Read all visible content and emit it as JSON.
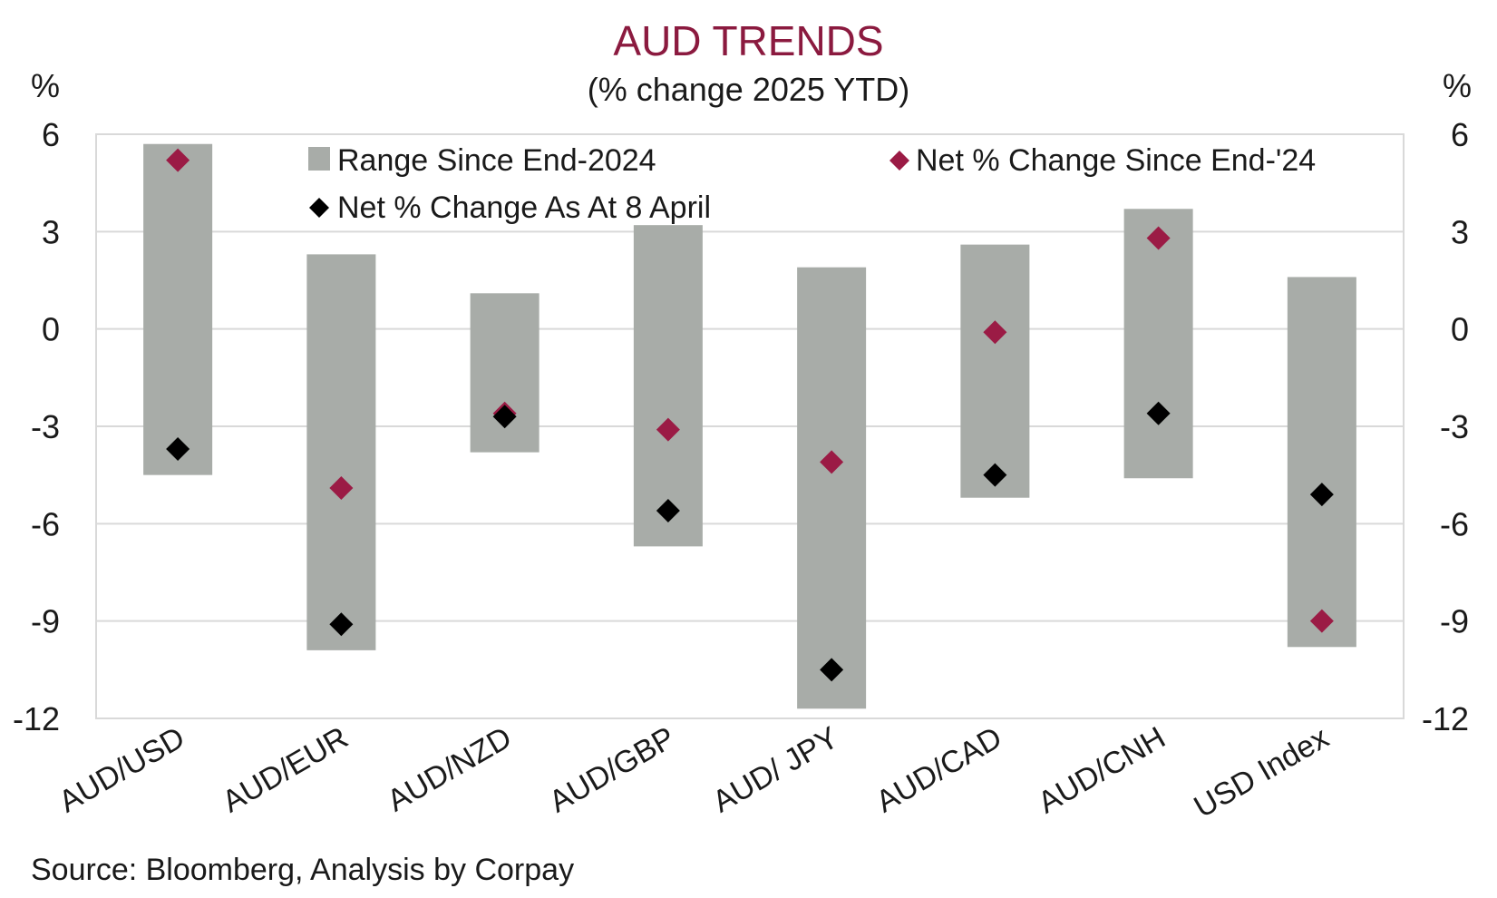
{
  "title": "AUD TRENDS",
  "subtitle": "(% change 2025 YTD)",
  "unit_left": "%",
  "unit_right": "%",
  "source": "Source: Bloomberg, Analysis by Corpay",
  "colors": {
    "range": "#a8aca8",
    "net_end24": "#9b1b45",
    "net_8april": "#000000",
    "grid": "#d9d9d9",
    "title": "#8b1a3f"
  },
  "chart_data": {
    "type": "bar",
    "categories": [
      "AUD/USD",
      "AUD/EUR",
      "AUD/NZD",
      "AUD/GBP",
      "AUD/ JPY",
      "AUD/CAD",
      "AUD/CNH",
      "USD Index"
    ],
    "ylim": [
      -12,
      6
    ],
    "yticks": [
      6,
      3,
      0,
      -3,
      -6,
      -9,
      -12
    ],
    "ytick_labels": [
      "6",
      "3",
      "0",
      "-3",
      "-6",
      "-9",
      "-12"
    ],
    "grid": true,
    "legend_position": "top",
    "series": [
      {
        "name": "Range Since End-2024",
        "kind": "range",
        "low": [
          -4.5,
          -9.9,
          -3.8,
          -6.7,
          -11.7,
          -5.2,
          -4.6,
          -9.8
        ],
        "high": [
          5.7,
          2.3,
          1.1,
          3.2,
          1.9,
          2.6,
          3.7,
          1.6
        ]
      },
      {
        "name": "Net % Change Since End-'24",
        "kind": "marker",
        "values": [
          5.2,
          -4.9,
          -2.6,
          -3.1,
          -4.1,
          -0.1,
          2.8,
          -9.0
        ]
      },
      {
        "name": "Net % Change As At 8 April",
        "kind": "marker",
        "values": [
          -3.7,
          -9.1,
          -2.7,
          -5.6,
          -10.5,
          -4.5,
          -2.6,
          -5.1
        ]
      }
    ]
  }
}
